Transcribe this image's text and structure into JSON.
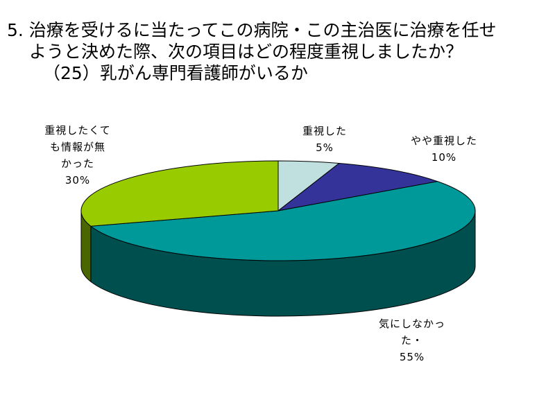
{
  "chart_data": {
    "type": "pie",
    "title_lines": [
      "5. 治療を受けるに当たってこの病院・この主治医に治療を任せ",
      "ようと決めた際、次の項目はどの程度重視しましたか？",
      "（25）乳がん専門看護師がいるか"
    ],
    "slices": [
      {
        "label_lines": [
          "重視した"
        ],
        "pct_label": "5%",
        "value": 5,
        "color": "#c0e0e0",
        "side_color": "#8fb0b0"
      },
      {
        "label_lines": [
          "やや重視した"
        ],
        "pct_label": "10%",
        "value": 10,
        "color": "#333399",
        "side_color": "#1c1c5e"
      },
      {
        "label_lines": [
          "気にしなかっ",
          "た・"
        ],
        "pct_label": "55%",
        "value": 55,
        "color": "#009999",
        "side_color": "#004f4f"
      },
      {
        "label_lines": [
          "重視したくて",
          "も情報が無",
          "かった"
        ],
        "pct_label": "30%",
        "value": 30,
        "color": "#99cc00",
        "side_color": "#4a6600"
      }
    ]
  }
}
